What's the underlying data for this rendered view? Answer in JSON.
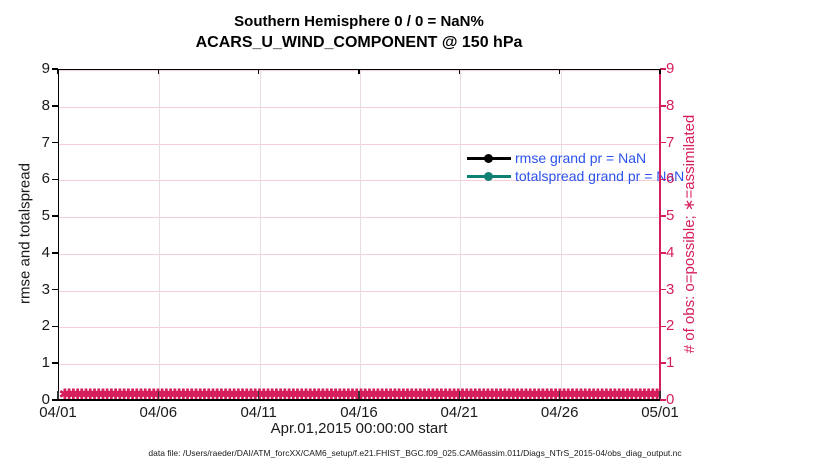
{
  "colors": {
    "crimson": "#D61E5C",
    "teal": "#0E8074",
    "black": "#000000",
    "legend_text_blue": "#2B53EC",
    "grid_horizontal": "#F6CEDC",
    "grid_vertical": "#E8DDE1",
    "tick_label_dark": "#1a1a1a"
  },
  "footer_text": "data file: /Users/raeder/DAI/ATM_forcXX/CAM6_setup/f.e21.FHIST_BGC.f09_025.CAM6assim.011/Diags_NTrS_2015-04/obs_diag_output.nc",
  "chart_data": {
    "type": "line",
    "title": "Southern Hemisphere 0 / 0 = NaN%",
    "subtitle": "ACARS_U_WIND_COMPONENT @ 150 hPa",
    "xlabel": "Apr.01,2015 00:00:00 start",
    "ylabel_left": "rmse and totalspread",
    "ylabel_right": "# of obs: o=possible; ∗=assimilated",
    "x_tick_labels": [
      "04/01",
      "04/06",
      "04/11",
      "04/16",
      "04/21",
      "04/26",
      "05/01"
    ],
    "y_tick_labels_left": [
      "0",
      "1",
      "2",
      "3",
      "4",
      "5",
      "6",
      "7",
      "8",
      "9"
    ],
    "y_tick_labels_right": [
      "0",
      "1",
      "2",
      "3",
      "4",
      "5",
      "6",
      "7",
      "8",
      "9"
    ],
    "ylim": [
      0,
      9
    ],
    "grid": true,
    "legend_position": "inside-top-right",
    "series": [
      {
        "name": "rmse grand pr = NaN",
        "marker": "filled-circle",
        "color_key": "black",
        "values": []
      },
      {
        "name": "totalspread grand pr = NaN",
        "marker": "filled-circle",
        "color_key": "teal",
        "values": []
      }
    ],
    "assimilated_obs_markers": {
      "symbol": "✱",
      "y_value": 0,
      "count": 150,
      "color_key": "crimson",
      "x_range": "full-axis"
    }
  }
}
